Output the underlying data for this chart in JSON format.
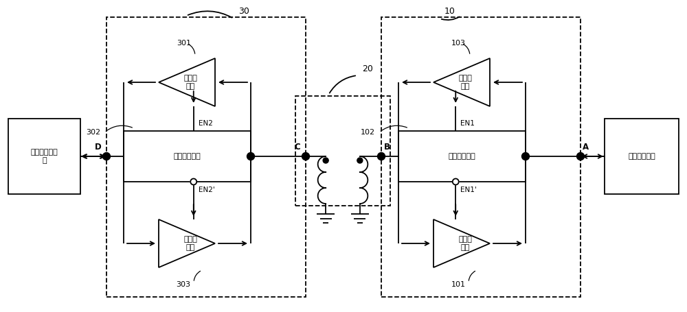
{
  "bg_color": "#ffffff",
  "line_color": "#000000",
  "fig_width": 10.0,
  "fig_height": 4.55,
  "dpi": 100,
  "labels": {
    "title_30": "30",
    "title_10": "10",
    "label_301": "301",
    "label_302": "302",
    "label_303": "303",
    "label_103": "103",
    "label_102": "102",
    "label_101": "101",
    "label_20": "20",
    "text_second_decode": "第二解\n码器",
    "text_second_select": "第二选通单元",
    "text_second_encode": "第二编\n码器",
    "text_first_encode": "第一编\n码器",
    "text_first_select": "第一选通单元",
    "text_first_decode": "第一解\n码器",
    "text_non_iso_ctrl": "非隔离侧控制\n器",
    "text_iso_ctrl": "隔离侧控制器",
    "en2": "EN2",
    "en2p": "EN2'",
    "en1": "EN1",
    "en1p": "EN1'",
    "node_d": "D",
    "node_c": "C",
    "node_b": "B",
    "node_a": "A"
  }
}
